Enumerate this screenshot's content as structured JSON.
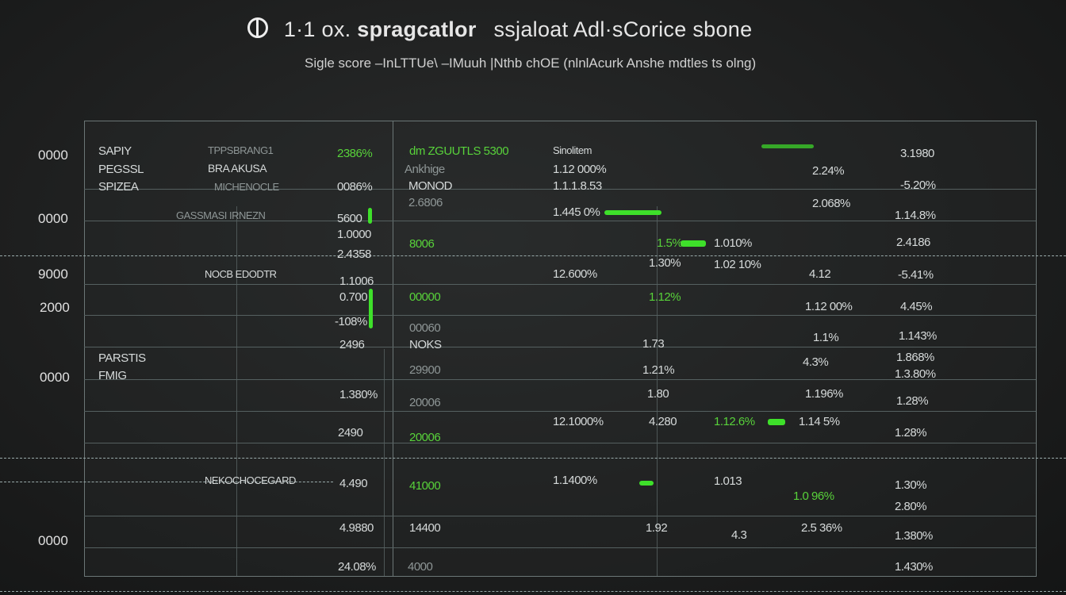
{
  "header": {
    "title_prefix": "1·1 ox.",
    "title_bold": "spragcatlor",
    "title_rest": "ssjaloat Adl·sCorice sbone",
    "subtitle": "Sigle score  –InLTTUe\\ –IMuuh |Nthb chOE (nlnlAcurk  Anshe mdtles ts olng)"
  },
  "colors": {
    "accent": "#3ee02a",
    "grid": "#556060",
    "text": "#d6dada"
  },
  "axis_labels": [
    "0000",
    "0000",
    "9000",
    "2000",
    "0000",
    "0000"
  ],
  "cells": [
    {
      "t": "SAPIY"
    },
    {
      "t": "PEGSSL"
    },
    {
      "t": "SPIZEA"
    },
    {
      "t": "PARSTIS"
    },
    {
      "t": "FMIG"
    },
    {
      "t": "TPPSBRANG1"
    },
    {
      "t": "BRA AKUSA"
    },
    {
      "t": "MICHENOCLE"
    },
    {
      "t": "GASSMASI IRNEZN"
    },
    {
      "t": "NOCB EDODTR"
    },
    {
      "t": "NEKOCHOCEGARD"
    },
    {
      "t": "2386%"
    },
    {
      "t": "0086%"
    },
    {
      "t": "5600"
    },
    {
      "t": "1.0000"
    },
    {
      "t": "2.4358"
    },
    {
      "t": "1.1006"
    },
    {
      "t": "0.700"
    },
    {
      "t": "-108%"
    },
    {
      "t": "2496"
    },
    {
      "t": "1.380%"
    },
    {
      "t": "2490"
    },
    {
      "t": "4.490"
    },
    {
      "t": "4.9880"
    },
    {
      "t": "24.08%"
    },
    {
      "t": "dm ZGUUTLS 5300"
    },
    {
      "t": "Ankhige"
    },
    {
      "t": "MONOD"
    },
    {
      "t": "2.6806"
    },
    {
      "t": "8006"
    },
    {
      "t": "00000"
    },
    {
      "t": "00060"
    },
    {
      "t": "NOKS"
    },
    {
      "t": "29900"
    },
    {
      "t": "20006"
    },
    {
      "t": "20006"
    },
    {
      "t": "41000"
    },
    {
      "t": "14400"
    },
    {
      "t": "4000"
    },
    {
      "t": "Sinolitem"
    },
    {
      "t": "1.12 000%"
    },
    {
      "t": "1.1.1.8.53"
    },
    {
      "t": "1.445 0%"
    },
    {
      "t": "12.600%"
    },
    {
      "t": "12.1000%"
    },
    {
      "t": "1.1400%"
    },
    {
      "t": "1.5%"
    },
    {
      "t": "1.30%"
    },
    {
      "t": "1.12%"
    },
    {
      "t": "1.73"
    },
    {
      "t": "1.21%"
    },
    {
      "t": "1.80"
    },
    {
      "t": "4.280"
    },
    {
      "t": "1.92"
    },
    {
      "t": "1.013"
    },
    {
      "t": "4.3"
    },
    {
      "t": "2.24%"
    },
    {
      "t": "2.068%"
    },
    {
      "t": "1.010%"
    },
    {
      "t": "1.02 10%"
    },
    {
      "t": "4.12"
    },
    {
      "t": "1.12 00%"
    },
    {
      "t": "1.1%"
    },
    {
      "t": "4.3%"
    },
    {
      "t": "1.196%"
    },
    {
      "t": "1.12.6%"
    },
    {
      "t": "1.14 5%"
    },
    {
      "t": "1.0 96%"
    },
    {
      "t": "2.5 36%"
    },
    {
      "t": "3.1980"
    },
    {
      "t": "-5.20%"
    },
    {
      "t": "1.14.8%"
    },
    {
      "t": "2.4186"
    },
    {
      "t": "-5.41%"
    },
    {
      "t": "4.45%"
    },
    {
      "t": "1.143%"
    },
    {
      "t": "1.868%"
    },
    {
      "t": "1.3.80%"
    },
    {
      "t": "1.28%"
    },
    {
      "t": "1.28%"
    },
    {
      "t": "1.30%"
    },
    {
      "t": "2.80%"
    },
    {
      "t": "1.380%"
    },
    {
      "t": "1.430%"
    }
  ]
}
